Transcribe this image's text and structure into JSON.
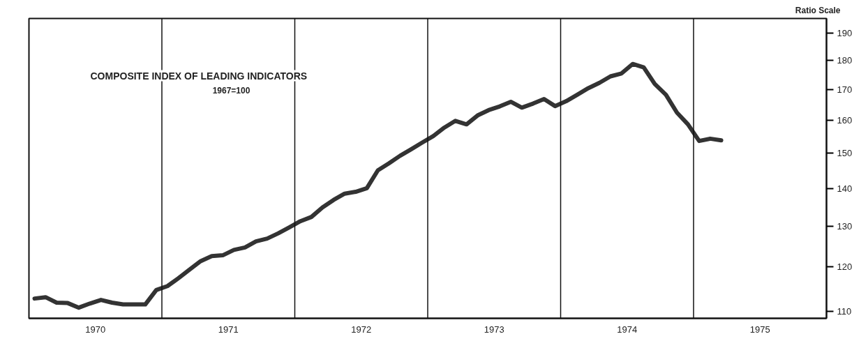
{
  "chart_data": {
    "type": "line",
    "title": "COMPOSITE INDEX OF LEADING INDICATORS",
    "subtitle": "1967=100",
    "ylabel": "Ratio Scale",
    "x": [
      1970.042,
      1970.125,
      1970.208,
      1970.292,
      1970.375,
      1970.458,
      1970.542,
      1970.625,
      1970.708,
      1970.792,
      1970.875,
      1970.958,
      1971.042,
      1971.125,
      1971.208,
      1971.292,
      1971.375,
      1971.458,
      1971.542,
      1971.625,
      1971.708,
      1971.792,
      1971.875,
      1971.958,
      1972.042,
      1972.125,
      1972.208,
      1972.292,
      1972.375,
      1972.458,
      1972.542,
      1972.625,
      1972.708,
      1972.792,
      1972.875,
      1972.958,
      1973.042,
      1973.125,
      1973.208,
      1973.292,
      1973.375,
      1973.458,
      1973.542,
      1973.625,
      1973.708,
      1973.792,
      1973.875,
      1973.958,
      1974.042,
      1974.125,
      1974.208,
      1974.292,
      1974.375,
      1974.458,
      1974.542,
      1974.625,
      1974.708,
      1974.792,
      1974.875,
      1974.958,
      1975.042,
      1975.125,
      1975.208
    ],
    "series": [
      {
        "color": "#333333",
        "values": [
          112.8,
          113.1,
          111.9,
          111.8,
          110.8,
          111.7,
          112.5,
          111.9,
          111.5,
          111.5,
          111.5,
          114.7,
          115.6,
          117.4,
          119.4,
          121.4,
          122.6,
          122.8,
          124.1,
          124.7,
          126.2,
          126.9,
          128.2,
          129.7,
          131.3,
          132.4,
          134.9,
          136.9,
          138.6,
          139.1,
          140.1,
          145.1,
          147.1,
          149.3,
          151.2,
          153.2,
          155.2,
          157.8,
          159.9,
          158.8,
          161.6,
          163.3,
          164.5,
          166.0,
          164.1,
          165.4,
          166.9,
          164.6,
          166.2,
          168.3,
          170.5,
          172.3,
          174.5,
          175.5,
          178.8,
          177.6,
          171.9,
          168.3,
          162.5,
          158.8,
          153.7,
          154.4,
          153.9
        ]
      }
    ],
    "xlim": [
      1970,
      1976
    ],
    "xticks": [
      {
        "value": 1970.5,
        "label": "1970"
      },
      {
        "value": 1971.5,
        "label": "1971"
      },
      {
        "value": 1972.5,
        "label": "1972"
      },
      {
        "value": 1973.5,
        "label": "1973"
      },
      {
        "value": 1974.5,
        "label": "1974"
      },
      {
        "value": 1975.5,
        "label": "1975"
      }
    ],
    "ylim": [
      108.5,
      195.5
    ],
    "yticks": [
      110,
      120,
      130,
      140,
      150,
      160,
      170,
      180,
      190
    ],
    "log": "y",
    "ref_lines": [
      {
        "axis": "x",
        "value": 1971,
        "color": "#111111"
      },
      {
        "axis": "x",
        "value": 1972,
        "color": "#111111"
      },
      {
        "axis": "x",
        "value": 1973,
        "color": "#111111"
      },
      {
        "axis": "x",
        "value": 1974,
        "color": "#111111"
      },
      {
        "axis": "x",
        "value": 1975,
        "color": "#111111"
      }
    ],
    "grid": false,
    "marker": "none",
    "line_style": "solid"
  }
}
